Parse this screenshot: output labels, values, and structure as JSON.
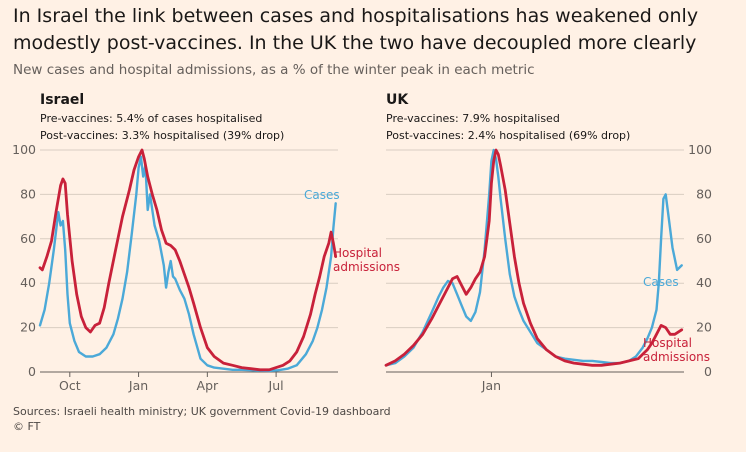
{
  "title": "In Israel the link between cases and hospitalisations has weakened only modestly post-vaccines. In the UK the two have decoupled more clearly",
  "subtitle": "New cases and hospital admissions, as a % of the winter peak in each metric",
  "source": "Sources: Israeli health ministry; UK government Covid-19 dashboard",
  "copyright": "© FT",
  "colors": {
    "cases": "#4ba9d8",
    "hospital": "#c8213a",
    "grid": "#d9cdc2",
    "axis": "#66605c"
  },
  "chart_data": [
    {
      "type": "line",
      "panel": "Israel",
      "title": "Israel",
      "notes": [
        "Pre-vaccines: 5.4% of cases hospitalised",
        "Post-vaccines: 3.3% hospitalised (39% drop)"
      ],
      "ylim": [
        0,
        100
      ],
      "yticks": [
        "0",
        "20",
        "40",
        "60",
        "80",
        "100"
      ],
      "xlim": [
        0,
        13
      ],
      "xticks": [
        {
          "label": "Oct",
          "x": 1.3
        },
        {
          "label": "Jan",
          "x": 4.3
        },
        {
          "label": "Apr",
          "x": 7.3
        },
        {
          "label": "Jul",
          "x": 10.3
        }
      ],
      "series": [
        {
          "name": "Cases",
          "label_lines": [
            "Cases"
          ],
          "x": [
            0,
            0.2,
            0.4,
            0.6,
            0.8,
            0.9,
            1.0,
            1.1,
            1.2,
            1.3,
            1.5,
            1.7,
            2.0,
            2.3,
            2.6,
            2.9,
            3.2,
            3.4,
            3.6,
            3.8,
            4.0,
            4.2,
            4.3,
            4.4,
            4.5,
            4.6,
            4.7,
            4.8,
            5.0,
            5.2,
            5.4,
            5.5,
            5.6,
            5.7,
            5.8,
            5.9,
            6.1,
            6.3,
            6.5,
            6.7,
            7.0,
            7.3,
            7.6,
            8.0,
            8.4,
            8.8,
            9.2,
            9.6,
            10.0,
            10.4,
            10.8,
            11.2,
            11.6,
            11.9,
            12.1,
            12.3,
            12.5,
            12.7,
            12.8,
            12.9
          ],
          "y": [
            21,
            28,
            40,
            55,
            72,
            66,
            68,
            55,
            35,
            22,
            14,
            9,
            7,
            7,
            8,
            11,
            17,
            24,
            33,
            45,
            62,
            80,
            92,
            97,
            88,
            93,
            73,
            80,
            66,
            59,
            48,
            38,
            45,
            50,
            43,
            42,
            37,
            33,
            26,
            17,
            6,
            3,
            2,
            1.5,
            1,
            1,
            0.8,
            0.6,
            0.5,
            0.8,
            1.5,
            3,
            8,
            14,
            20,
            28,
            38,
            52,
            65,
            76
          ]
        },
        {
          "name": "Hospital admissions",
          "label_lines": [
            "Hospital",
            "admissions"
          ],
          "x": [
            0,
            0.1,
            0.3,
            0.5,
            0.7,
            0.9,
            1.0,
            1.1,
            1.2,
            1.4,
            1.6,
            1.8,
            2.0,
            2.2,
            2.4,
            2.6,
            2.8,
            3.0,
            3.3,
            3.6,
            3.9,
            4.1,
            4.3,
            4.45,
            4.55,
            4.7,
            4.9,
            5.1,
            5.3,
            5.5,
            5.7,
            5.9,
            6.1,
            6.3,
            6.5,
            6.7,
            7.0,
            7.3,
            7.6,
            8.0,
            8.4,
            8.8,
            9.2,
            9.6,
            10.0,
            10.3,
            10.6,
            10.9,
            11.2,
            11.5,
            11.8,
            12.0,
            12.2,
            12.4,
            12.6,
            12.7,
            12.8,
            12.9
          ],
          "y": [
            47,
            46,
            52,
            59,
            72,
            84,
            87,
            85,
            71,
            50,
            35,
            25,
            20,
            18,
            21,
            22,
            29,
            40,
            55,
            70,
            82,
            91,
            97,
            100,
            96,
            88,
            80,
            73,
            64,
            58,
            57,
            55,
            50,
            44,
            38,
            31,
            20,
            11,
            7,
            4,
            3,
            2,
            1.5,
            1,
            1,
            2,
            3,
            5,
            9,
            16,
            26,
            35,
            43,
            52,
            58,
            63,
            58,
            52
          ]
        }
      ]
    },
    {
      "type": "line",
      "panel": "UK",
      "title": "UK",
      "notes": [
        "Pre-vaccines: 7.9% hospitalised",
        "Post-vaccines: 2.4% hospitalised (69% drop)"
      ],
      "ylim": [
        0,
        100
      ],
      "yticks": [
        "0",
        "20",
        "40",
        "60",
        "80",
        "100"
      ],
      "xlim": [
        0,
        13
      ],
      "xticks": [
        {
          "label": "Jan",
          "x": 4.6
        }
      ],
      "series": [
        {
          "name": "Cases",
          "label_lines": [
            "Cases"
          ],
          "x": [
            0,
            0.4,
            0.8,
            1.2,
            1.6,
            2.0,
            2.3,
            2.5,
            2.7,
            2.9,
            3.1,
            3.3,
            3.5,
            3.7,
            3.9,
            4.1,
            4.3,
            4.5,
            4.6,
            4.7,
            4.8,
            4.9,
            5.0,
            5.2,
            5.4,
            5.6,
            5.8,
            6.0,
            6.3,
            6.6,
            7.0,
            7.4,
            7.8,
            8.2,
            8.6,
            9.0,
            9.4,
            9.8,
            10.2,
            10.6,
            10.9,
            11.2,
            11.4,
            11.6,
            11.8,
            11.9,
            12.0,
            12.1,
            12.2,
            12.3,
            12.5,
            12.7,
            12.9
          ],
          "y": [
            3,
            4,
            7,
            11,
            18,
            27,
            34,
            38,
            41,
            40,
            35,
            30,
            25,
            23,
            27,
            36,
            55,
            80,
            95,
            100,
            96,
            88,
            78,
            60,
            44,
            34,
            28,
            23,
            18,
            13,
            10,
            7,
            6,
            5.5,
            5,
            5,
            4.5,
            4,
            4,
            5,
            7,
            11,
            15,
            20,
            28,
            40,
            60,
            78,
            80,
            72,
            56,
            46,
            48
          ]
        },
        {
          "name": "Hospital admissions",
          "label_lines": [
            "Hospital",
            "admissions"
          ],
          "x": [
            0,
            0.4,
            0.8,
            1.2,
            1.6,
            2.0,
            2.3,
            2.6,
            2.9,
            3.1,
            3.3,
            3.5,
            3.7,
            3.9,
            4.1,
            4.3,
            4.5,
            4.6,
            4.7,
            4.8,
            4.9,
            5.0,
            5.2,
            5.4,
            5.6,
            5.8,
            6.0,
            6.3,
            6.6,
            7.0,
            7.4,
            7.8,
            8.2,
            8.6,
            9.0,
            9.4,
            9.8,
            10.2,
            10.6,
            11.0,
            11.2,
            11.4,
            11.6,
            11.8,
            12.0,
            12.2,
            12.4,
            12.6,
            12.9
          ],
          "y": [
            3,
            5,
            8,
            12,
            17,
            24,
            30,
            36,
            42,
            43,
            39,
            35,
            38,
            42,
            45,
            52,
            68,
            85,
            95,
            100,
            98,
            93,
            82,
            67,
            52,
            40,
            31,
            22,
            15,
            10,
            7,
            5,
            4,
            3.5,
            3,
            3,
            3.5,
            4,
            5,
            6,
            8,
            10,
            13,
            17,
            21,
            20,
            17,
            17,
            19
          ]
        }
      ]
    }
  ]
}
